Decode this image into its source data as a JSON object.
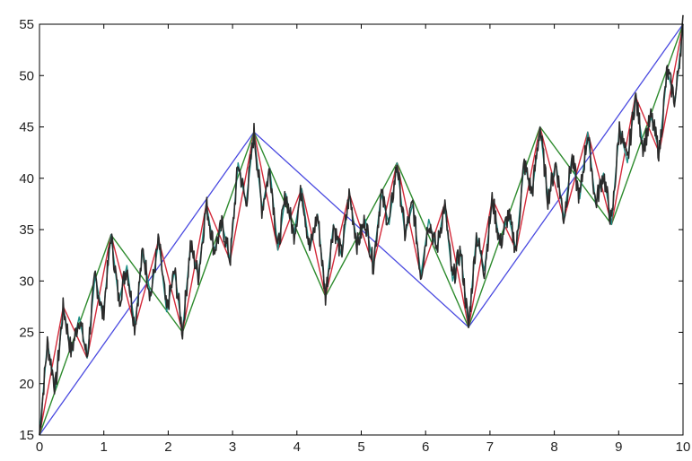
{
  "chart_data": {
    "type": "line",
    "title": "",
    "xlabel": "",
    "ylabel": "",
    "xlim": [
      0,
      10
    ],
    "ylim": [
      15,
      55
    ],
    "x_ticks": [
      "0",
      "1",
      "2",
      "3",
      "4",
      "5",
      "6",
      "7",
      "8",
      "9",
      "10"
    ],
    "y_ticks": [
      "15",
      "20",
      "25",
      "30",
      "35",
      "40",
      "45",
      "50",
      "55"
    ],
    "grid": false,
    "legend": "none",
    "series": [
      {
        "color": "#4a4ae0",
        "x": [
          0,
          3.333,
          6.667,
          10
        ],
        "y": [
          15,
          44.5,
          25.5,
          55
        ]
      },
      {
        "color": "#2e8b2e",
        "x": [
          0,
          1.111,
          2.222,
          3.333,
          4.444,
          5.556,
          6.667,
          7.778,
          8.889,
          10
        ],
        "y": [
          15,
          34.5,
          25,
          44.5,
          28.5,
          41.5,
          25.5,
          45,
          35.5,
          55
        ]
      },
      {
        "color": "#d42a3a",
        "x": [
          0,
          0.37,
          0.74,
          1.111,
          1.481,
          1.852,
          2.222,
          2.593,
          2.963,
          3.333,
          3.704,
          4.074,
          4.444,
          4.815,
          5.185,
          5.556,
          5.926,
          6.296,
          6.667,
          7.037,
          7.407,
          7.778,
          8.148,
          8.519,
          8.889,
          9.259,
          9.63,
          10
        ],
        "y": [
          15,
          27.5,
          22.5,
          34.5,
          25.5,
          34,
          25,
          37.5,
          32,
          44.5,
          33,
          39,
          28.5,
          38.5,
          31.5,
          41.5,
          30.5,
          37.5,
          25.5,
          38,
          33,
          45,
          36,
          44.5,
          35.5,
          48,
          42.5,
          55
        ]
      },
      {
        "color": "#1f8f85",
        "x": [
          0,
          0.123,
          0.247,
          0.37,
          0.494,
          0.617,
          0.74,
          0.864,
          0.988,
          1.111,
          1.235,
          1.358,
          1.481,
          1.605,
          1.728,
          1.852,
          1.975,
          2.099,
          2.222,
          2.346,
          2.469,
          2.593,
          2.716,
          2.84,
          2.963,
          3.086,
          3.21,
          3.333,
          3.457,
          3.58,
          3.704,
          3.827,
          3.951,
          4.074,
          4.198,
          4.321,
          4.444,
          4.568,
          4.691,
          4.815,
          4.938,
          5.062,
          5.185,
          5.309,
          5.432,
          5.556,
          5.679,
          5.802,
          5.926,
          6.049,
          6.173,
          6.296,
          6.42,
          6.543,
          6.667,
          6.79,
          6.914,
          7.037,
          7.16,
          7.284,
          7.407,
          7.531,
          7.654,
          7.778,
          7.901,
          8.025,
          8.148,
          8.272,
          8.395,
          8.519,
          8.642,
          8.765,
          8.889,
          9.012,
          9.136,
          9.259,
          9.383,
          9.506,
          9.63,
          9.753,
          9.877,
          10
        ],
        "y": [
          15,
          24,
          19.5,
          27.5,
          23,
          26.5,
          22.5,
          30.5,
          26.5,
          34.5,
          28,
          31.5,
          25.5,
          33,
          28.5,
          34,
          27,
          31,
          25,
          33.5,
          30.5,
          37.5,
          33,
          35.5,
          32,
          41.5,
          37.5,
          44.5,
          37,
          41,
          33,
          38.5,
          34.5,
          39,
          33,
          36.5,
          28.5,
          35.5,
          32.5,
          38.5,
          33.5,
          36,
          31.5,
          38.5,
          35.5,
          41.5,
          34.5,
          37.5,
          30.5,
          36,
          33,
          37.5,
          30,
          33,
          25.5,
          34.5,
          31,
          38,
          33.5,
          36.5,
          33,
          41.5,
          38.5,
          45,
          38,
          41.5,
          36,
          42,
          38,
          44.5,
          37.5,
          40.5,
          35.5,
          45,
          41.5,
          48,
          43,
          46,
          42.5,
          50.5,
          47.5,
          55
        ]
      }
    ]
  }
}
